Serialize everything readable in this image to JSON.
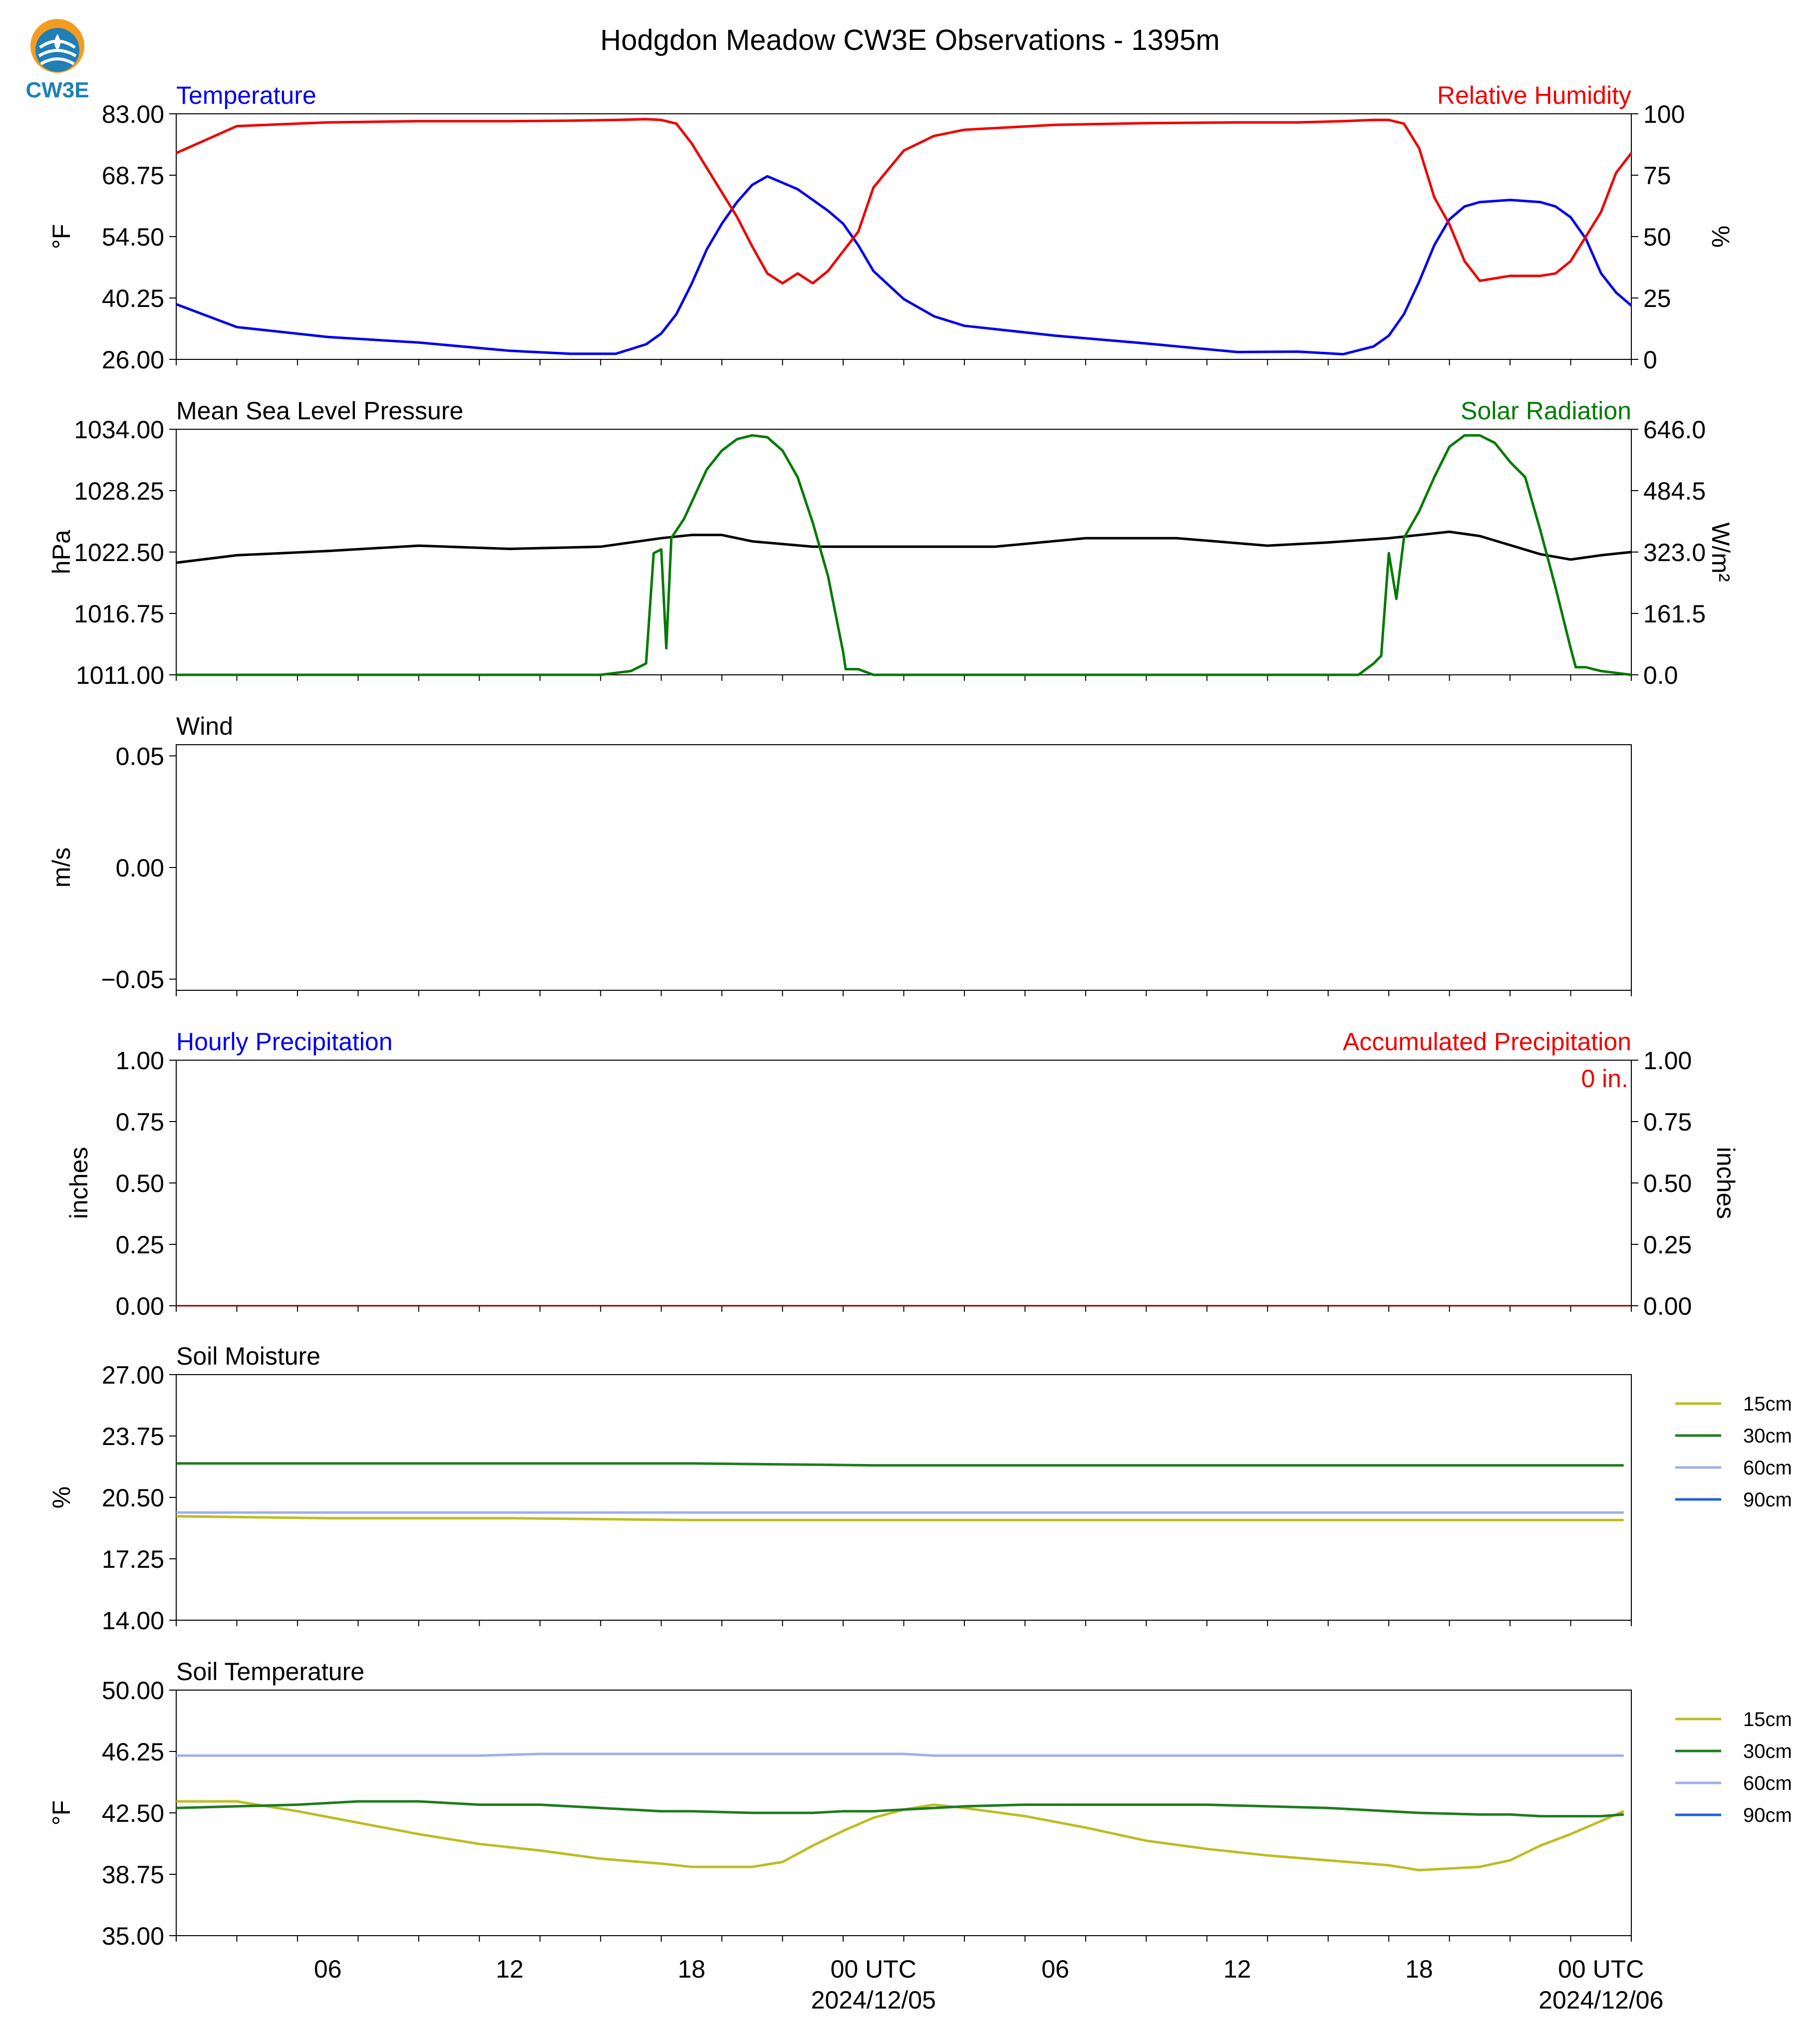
{
  "title": "Hodgdon Meadow CW3E Observations - 1395m",
  "logo": {
    "text": "CW3E"
  },
  "colors": {
    "temperature": "#0000ee",
    "humidity": "#ee0000",
    "pressure": "#000000",
    "solar": "#007a00",
    "soil15": "#bcbd22",
    "soil30": "#1e7b1e",
    "soil60": "#9fb0e6",
    "soil90": "#1f5fe0"
  },
  "x_axis": {
    "range": [
      "2024-12-04 01:00",
      "2024-12-06 01:00"
    ],
    "tick_labels": [
      {
        "x": "2024-12-04 06:00",
        "line1": "06",
        "line2": ""
      },
      {
        "x": "2024-12-04 12:00",
        "line1": "12",
        "line2": ""
      },
      {
        "x": "2024-12-04 18:00",
        "line1": "18",
        "line2": ""
      },
      {
        "x": "2024-12-05 00:00",
        "line1": "00 UTC",
        "line2": "2024/12/05"
      },
      {
        "x": "2024-12-05 06:00",
        "line1": "06",
        "line2": ""
      },
      {
        "x": "2024-12-05 12:00",
        "line1": "12",
        "line2": ""
      },
      {
        "x": "2024-12-05 18:00",
        "line1": "18",
        "line2": ""
      },
      {
        "x": "2024-12-06 00:00",
        "line1": "00 UTC",
        "line2": "2024/12/06"
      }
    ]
  },
  "panels": {
    "temp_rh": {
      "left_title": "Temperature",
      "right_title": "Relative Humidity",
      "left_ylabel": "°F",
      "right_ylabel": "%",
      "left_ticks": [
        "26.00",
        "40.25",
        "54.50",
        "68.75",
        "83.00"
      ],
      "right_ticks": [
        "0",
        "25",
        "50",
        "75",
        "100"
      ]
    },
    "pressure_solar": {
      "left_title": "Mean Sea Level Pressure",
      "right_title": "Solar Radiation",
      "left_ylabel": "hPa",
      "right_ylabel": "W/m²",
      "left_ticks": [
        "1011.00",
        "1016.75",
        "1022.50",
        "1028.25",
        "1034.00"
      ],
      "right_ticks": [
        "0.0",
        "161.5",
        "323.0",
        "484.5",
        "646.0"
      ]
    },
    "wind": {
      "left_title": "Wind",
      "left_ylabel": "m/s",
      "left_ticks": [
        "−0.05",
        "0.00",
        "0.05"
      ]
    },
    "precip": {
      "left_title": "Hourly Precipitation",
      "right_title": "Accumulated Precipitation",
      "left_ylabel": "inches",
      "right_ylabel": "inches",
      "left_ticks": [
        "0.00",
        "0.25",
        "0.50",
        "0.75",
        "1.00"
      ],
      "right_ticks": [
        "0.00",
        "0.25",
        "0.50",
        "0.75",
        "1.00"
      ],
      "total_label": "0 in."
    },
    "soil_moisture": {
      "left_title": "Soil Moisture",
      "left_ylabel": "%",
      "left_ticks": [
        "14.00",
        "17.25",
        "20.50",
        "23.75",
        "27.00"
      ],
      "legend": [
        "15cm",
        "30cm",
        "60cm",
        "90cm"
      ]
    },
    "soil_temp": {
      "left_title": "Soil Temperature",
      "left_ylabel": "°F",
      "left_ticks": [
        "35.00",
        "38.75",
        "42.50",
        "46.25",
        "50.00"
      ],
      "legend": [
        "15cm",
        "30cm",
        "60cm",
        "90cm"
      ]
    }
  },
  "chart_data": [
    {
      "type": "line",
      "title": "Temperature / Relative Humidity",
      "x": [
        "2024-12-04 01:00",
        "2024-12-04 03:00",
        "2024-12-04 06:00",
        "2024-12-04 09:00",
        "2024-12-04 12:00",
        "2024-12-04 14:00",
        "2024-12-04 15:30",
        "2024-12-04 16:30",
        "2024-12-04 17:00",
        "2024-12-04 17:30",
        "2024-12-04 18:00",
        "2024-12-04 18:30",
        "2024-12-04 19:00",
        "2024-12-04 19:30",
        "2024-12-04 20:00",
        "2024-12-04 20:30",
        "2024-12-04 21:00",
        "2024-12-04 21:30",
        "2024-12-04 22:00",
        "2024-12-04 22:30",
        "2024-12-04 23:00",
        "2024-12-04 23:30",
        "2024-12-05 00:00",
        "2024-12-05 01:00",
        "2024-12-05 02:00",
        "2024-12-05 03:00",
        "2024-12-05 06:00",
        "2024-12-05 09:00",
        "2024-12-05 12:00",
        "2024-12-05 14:00",
        "2024-12-05 15:30",
        "2024-12-05 16:30",
        "2024-12-05 17:00",
        "2024-12-05 17:30",
        "2024-12-05 18:00",
        "2024-12-05 18:30",
        "2024-12-05 19:00",
        "2024-12-05 19:30",
        "2024-12-05 20:00",
        "2024-12-05 21:00",
        "2024-12-05 22:00",
        "2024-12-05 22:30",
        "2024-12-05 23:00",
        "2024-12-05 23:30",
        "2024-12-06 00:00",
        "2024-12-06 00:30",
        "2024-12-06 01:00"
      ],
      "series": [
        {
          "name": "Temperature",
          "axis": "left",
          "ylim": [
            26,
            83
          ],
          "values": [
            38.8,
            33.5,
            31.2,
            29.9,
            28.0,
            27.3,
            27.3,
            29.5,
            32.0,
            36.5,
            43.5,
            51.5,
            57.5,
            62.5,
            66.5,
            68.5,
            67.0,
            65.5,
            63.0,
            60.5,
            57.5,
            52.5,
            46.5,
            40.0,
            36.0,
            33.8,
            31.5,
            29.7,
            27.7,
            27.8,
            27.2,
            29.0,
            31.5,
            36.5,
            44.0,
            52.5,
            58.5,
            61.5,
            62.5,
            63.0,
            62.5,
            61.5,
            59.0,
            54.0,
            46.0,
            41.5,
            38.5
          ]
        },
        {
          "name": "Relative Humidity",
          "axis": "right",
          "ylim": [
            0,
            100
          ],
          "values": [
            84,
            95,
            96.5,
            97,
            97,
            97.2,
            97.5,
            97.8,
            97.5,
            96,
            88,
            78,
            68,
            58,
            46,
            35,
            31,
            35,
            31,
            36,
            44,
            52,
            70,
            85,
            91,
            93.5,
            95.5,
            96.2,
            96.5,
            96.5,
            97,
            97.5,
            97.5,
            96,
            86,
            66,
            55,
            40,
            32,
            34,
            34,
            35,
            40,
            50,
            60,
            76,
            84
          ]
        }
      ]
    },
    {
      "type": "line",
      "title": "Mean Sea Level Pressure / Solar Radiation",
      "series": [
        {
          "name": "Mean Sea Level Pressure",
          "axis": "left",
          "ylim": [
            1011,
            1034
          ],
          "x": [
            "2024-12-04 01:00",
            "2024-12-04 03:00",
            "2024-12-04 06:00",
            "2024-12-04 09:00",
            "2024-12-04 12:00",
            "2024-12-04 15:00",
            "2024-12-04 17:00",
            "2024-12-04 18:00",
            "2024-12-04 19:00",
            "2024-12-04 20:00",
            "2024-12-04 22:00",
            "2024-12-05 01:00",
            "2024-12-05 04:00",
            "2024-12-05 07:00",
            "2024-12-05 10:00",
            "2024-12-05 13:00",
            "2024-12-05 15:00",
            "2024-12-05 17:00",
            "2024-12-05 18:00",
            "2024-12-05 19:00",
            "2024-12-05 20:00",
            "2024-12-05 22:00",
            "2024-12-05 23:00",
            "2024-12-06 00:00",
            "2024-12-06 01:00"
          ],
          "values": [
            1021.5,
            1022.2,
            1022.6,
            1023.1,
            1022.8,
            1023.0,
            1023.8,
            1024.1,
            1024.1,
            1023.5,
            1023.0,
            1023.0,
            1023.0,
            1023.8,
            1023.8,
            1023.1,
            1023.4,
            1023.8,
            1024.1,
            1024.4,
            1024.0,
            1022.3,
            1021.8,
            1022.2,
            1022.5
          ]
        },
        {
          "name": "Solar Radiation",
          "axis": "right",
          "ylim": [
            0,
            646
          ],
          "x": [
            "2024-12-04 01:00",
            "2024-12-04 15:00",
            "2024-12-04 16:00",
            "2024-12-04 16:30",
            "2024-12-04 16:45",
            "2024-12-04 17:00",
            "2024-12-04 17:10",
            "2024-12-04 17:20",
            "2024-12-04 17:45",
            "2024-12-04 18:30",
            "2024-12-04 19:00",
            "2024-12-04 19:30",
            "2024-12-04 20:00",
            "2024-12-04 20:30",
            "2024-12-04 21:00",
            "2024-12-04 21:30",
            "2024-12-04 22:00",
            "2024-12-04 22:30",
            "2024-12-04 23:00",
            "2024-12-04 23:05",
            "2024-12-04 23:30",
            "2024-12-05 00:00",
            "2024-12-05 15:00",
            "2024-12-05 16:00",
            "2024-12-05 16:30",
            "2024-12-05 16:45",
            "2024-12-05 17:00",
            "2024-12-05 17:15",
            "2024-12-05 17:30",
            "2024-12-05 18:00",
            "2024-12-05 18:30",
            "2024-12-05 19:00",
            "2024-12-05 19:30",
            "2024-12-05 20:00",
            "2024-12-05 20:30",
            "2024-12-05 21:00",
            "2024-12-05 21:30",
            "2024-12-05 22:00",
            "2024-12-05 22:30",
            "2024-12-05 23:00",
            "2024-12-05 23:10",
            "2024-12-05 23:30",
            "2024-12-06 00:00",
            "2024-12-06 01:00"
          ],
          "values": [
            0,
            0,
            10,
            30,
            320,
            330,
            70,
            360,
            410,
            540,
            590,
            620,
            630,
            625,
            590,
            520,
            400,
            260,
            60,
            15,
            15,
            0,
            0,
            0,
            30,
            50,
            320,
            200,
            360,
            430,
            520,
            600,
            630,
            630,
            610,
            560,
            520,
            380,
            230,
            70,
            20,
            20,
            10,
            0
          ]
        }
      ]
    },
    {
      "type": "line",
      "title": "Wind",
      "ylim": [
        -0.055,
        0.055
      ],
      "series": []
    },
    {
      "type": "line",
      "title": "Hourly Precipitation / Accumulated Precipitation",
      "x": [
        "2024-12-04 01:00",
        "2024-12-06 01:00"
      ],
      "series": [
        {
          "name": "Hourly Precipitation",
          "axis": "left",
          "ylim": [
            0,
            1
          ],
          "values": [
            0,
            0
          ]
        },
        {
          "name": "Accumulated Precipitation",
          "axis": "right",
          "ylim": [
            0,
            1
          ],
          "values": [
            0,
            0
          ]
        }
      ]
    },
    {
      "type": "line",
      "title": "Soil Moisture",
      "ylim": [
        14,
        27
      ],
      "x": [
        "2024-12-04 01:00",
        "2024-12-04 06:00",
        "2024-12-04 12:00",
        "2024-12-04 18:00",
        "2024-12-05 00:00",
        "2024-12-05 06:00",
        "2024-12-05 12:00",
        "2024-12-05 18:00",
        "2024-12-06 00:00",
        "2024-12-06 00:45"
      ],
      "series": [
        {
          "name": "15cm",
          "values": [
            19.5,
            19.4,
            19.4,
            19.3,
            19.3,
            19.3,
            19.3,
            19.3,
            19.3,
            19.3
          ]
        },
        {
          "name": "30cm",
          "values": [
            22.3,
            22.3,
            22.3,
            22.3,
            22.2,
            22.2,
            22.2,
            22.2,
            22.2,
            22.2
          ]
        },
        {
          "name": "60cm",
          "values": [
            19.7,
            19.7,
            19.7,
            19.7,
            19.7,
            19.7,
            19.7,
            19.7,
            19.7,
            19.7
          ]
        }
      ]
    },
    {
      "type": "line",
      "title": "Soil Temperature",
      "ylim": [
        35,
        50
      ],
      "x": [
        "2024-12-04 01:00",
        "2024-12-04 03:00",
        "2024-12-04 05:00",
        "2024-12-04 07:00",
        "2024-12-04 09:00",
        "2024-12-04 11:00",
        "2024-12-04 13:00",
        "2024-12-04 15:00",
        "2024-12-04 17:00",
        "2024-12-04 18:00",
        "2024-12-04 20:00",
        "2024-12-04 21:00",
        "2024-12-04 22:00",
        "2024-12-04 23:00",
        "2024-12-05 00:00",
        "2024-12-05 01:00",
        "2024-12-05 02:00",
        "2024-12-05 03:00",
        "2024-12-05 05:00",
        "2024-12-05 07:00",
        "2024-12-05 09:00",
        "2024-12-05 11:00",
        "2024-12-05 13:00",
        "2024-12-05 15:00",
        "2024-12-05 17:00",
        "2024-12-05 18:00",
        "2024-12-05 20:00",
        "2024-12-05 21:00",
        "2024-12-05 22:00",
        "2024-12-05 23:00",
        "2024-12-06 00:00",
        "2024-12-06 00:45"
      ],
      "series": [
        {
          "name": "15cm",
          "values": [
            43.2,
            43.2,
            42.6,
            41.9,
            41.2,
            40.6,
            40.2,
            39.7,
            39.4,
            39.2,
            39.2,
            39.5,
            40.5,
            41.4,
            42.2,
            42.7,
            43.0,
            42.8,
            42.3,
            41.6,
            40.8,
            40.3,
            39.9,
            39.6,
            39.3,
            39.0,
            39.2,
            39.6,
            40.5,
            41.2,
            42.0,
            42.6
          ]
        },
        {
          "name": "30cm",
          "values": [
            42.8,
            42.9,
            43.0,
            43.2,
            43.2,
            43.0,
            43.0,
            42.8,
            42.6,
            42.6,
            42.5,
            42.5,
            42.5,
            42.6,
            42.6,
            42.7,
            42.8,
            42.9,
            43.0,
            43.0,
            43.0,
            43.0,
            42.9,
            42.8,
            42.6,
            42.5,
            42.4,
            42.4,
            42.3,
            42.3,
            42.3,
            42.4
          ]
        },
        {
          "name": "60cm",
          "values": [
            46.0,
            46.0,
            46.0,
            46.0,
            46.0,
            46.0,
            46.1,
            46.1,
            46.1,
            46.1,
            46.1,
            46.1,
            46.1,
            46.1,
            46.1,
            46.1,
            46.0,
            46.0,
            46.0,
            46.0,
            46.0,
            46.0,
            46.0,
            46.0,
            46.0,
            46.0,
            46.0,
            46.0,
            46.0,
            46.0,
            46.0,
            46.0
          ]
        }
      ]
    }
  ]
}
